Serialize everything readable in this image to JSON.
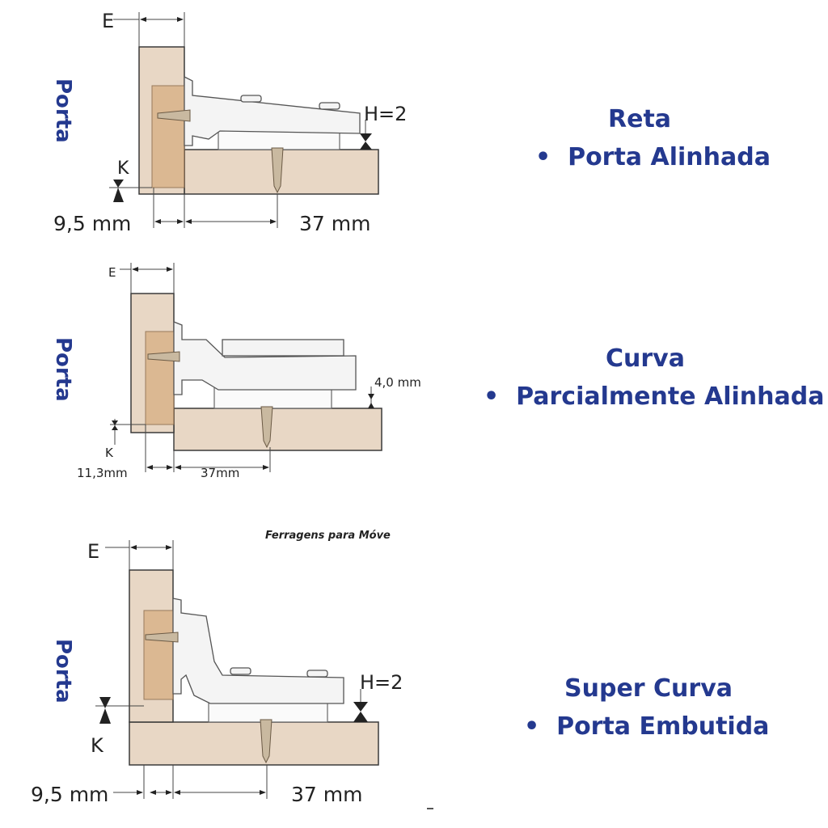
{
  "colors": {
    "label_blue": "#24398f",
    "wood": "#e8d7c5",
    "cup": "#d9b38a"
  },
  "panels": [
    {
      "side_label": "Porta",
      "title": "Reta",
      "bullet": "•",
      "subtitle": "Porta Alinhada",
      "e_label": "E",
      "h_label": "H=2",
      "k_label": "K",
      "left_dim": "9,5 mm",
      "right_dim": "37 mm"
    },
    {
      "side_label": "Porta",
      "title": "Curva",
      "bullet": "•",
      "subtitle": "Parcialmente Alinhada",
      "e_label": "E",
      "h_label": "4,0 mm",
      "k_label": "K",
      "left_dim": "11,3mm",
      "right_dim": "37mm"
    },
    {
      "side_label": "Porta",
      "title": "Super Curva",
      "bullet": "•",
      "subtitle": "Porta Embutida",
      "e_label": "E",
      "h_label": "H=2",
      "k_label": "K",
      "left_dim": "9,5 mm",
      "right_dim": "37 mm",
      "watermark": "Ferragens para Móve"
    }
  ]
}
